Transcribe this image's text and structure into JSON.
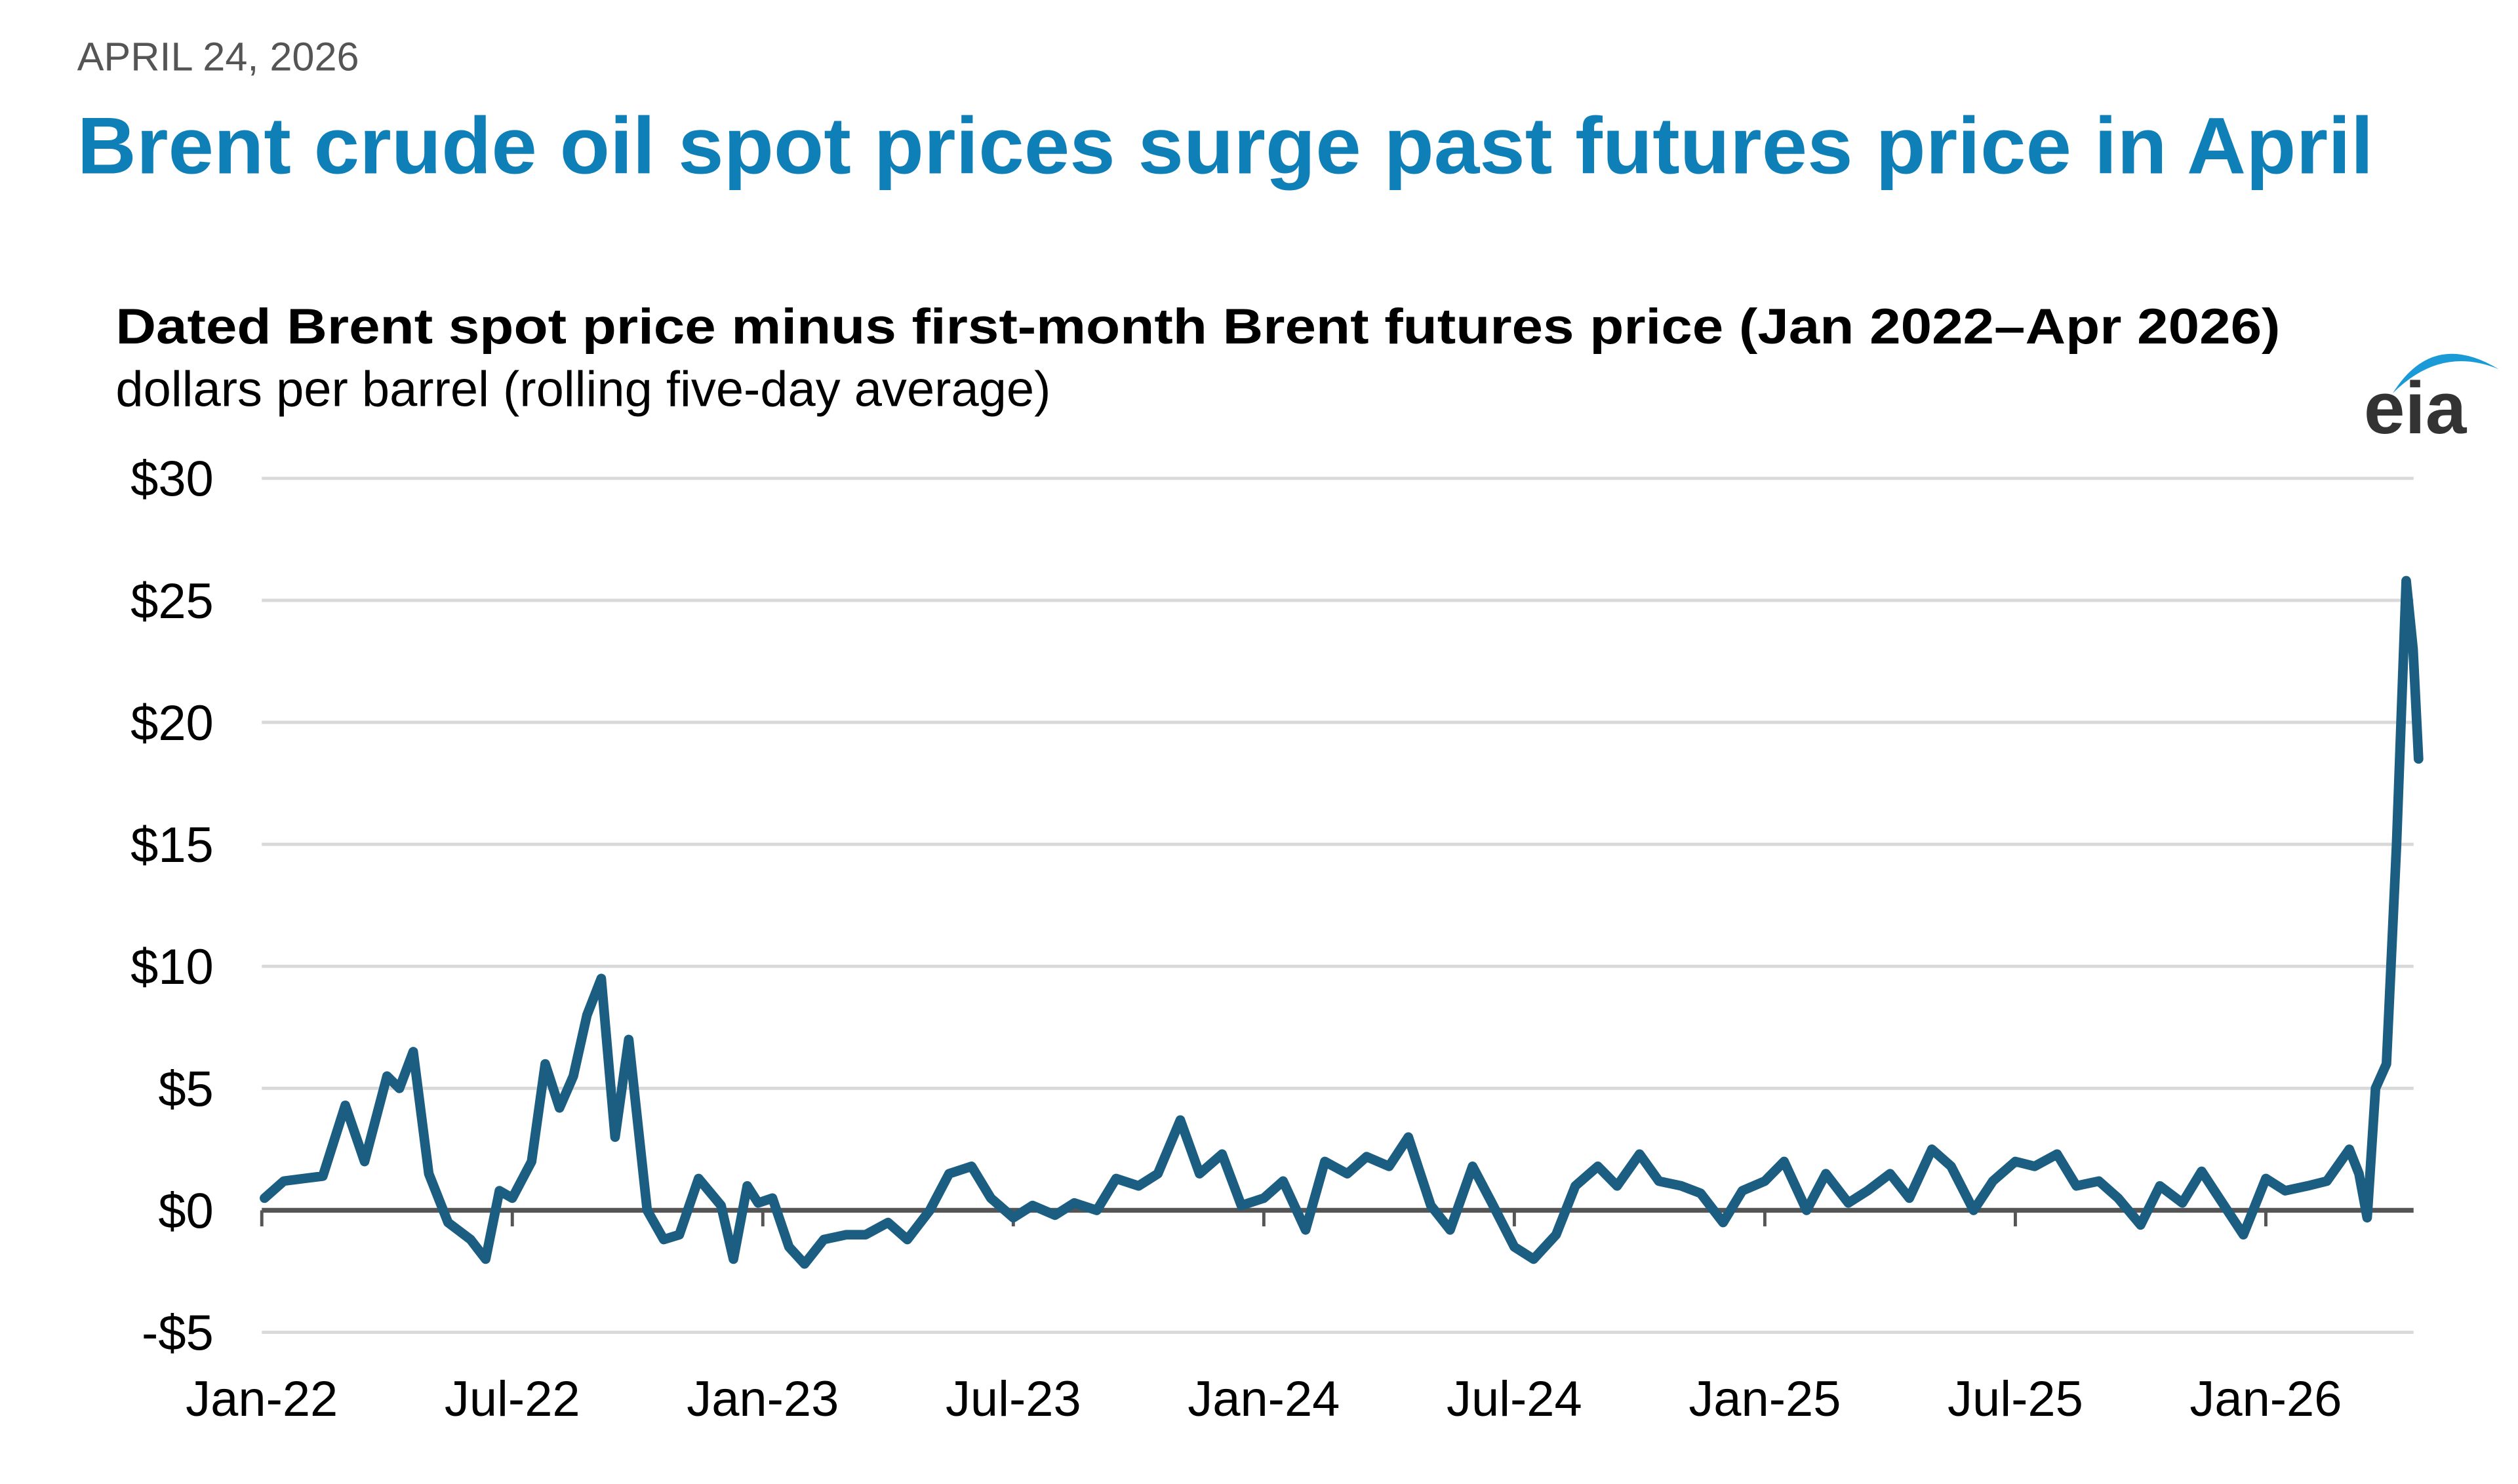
{
  "header": {
    "date": "APRIL 24, 2026",
    "title": "Brent crude oil spot prices surge past futures price in April"
  },
  "logo": {
    "text": "eia",
    "arc_color": "#1a9ad6",
    "text_color": "#333333"
  },
  "colors": {
    "title": "#0f7fb8",
    "line": "#1b5e82",
    "grid": "#d9d9d9",
    "zero_axis": "#555555"
  },
  "chart_data": {
    "type": "line",
    "title": "Dated Brent spot price minus first-month Brent futures price (Jan 2022–Apr 2026)",
    "subtitle": "dollars per barrel (rolling five-day average)",
    "xlabel": "",
    "ylabel": "",
    "ylim": [
      -5,
      30
    ],
    "y_ticks": [
      30,
      25,
      20,
      15,
      10,
      5,
      0,
      -5
    ],
    "y_tick_labels": [
      "$30",
      "$25",
      "$20",
      "$15",
      "$10",
      "$5",
      "$0",
      "-$5"
    ],
    "x_ticks": [
      "2022-01-01",
      "2022-07-01",
      "2023-01-01",
      "2023-07-01",
      "2024-01-01",
      "2024-07-01",
      "2025-01-01",
      "2025-07-01",
      "2026-01-01"
    ],
    "x_tick_labels": [
      "Jan-22",
      "Jul-22",
      "Jan-23",
      "Jul-23",
      "Jan-24",
      "Jul-24",
      "Jan-25",
      "Jul-25",
      "Jan-26"
    ],
    "grid": true,
    "legend": "none",
    "series": [
      {
        "points": [
          [
            "2022-01-03",
            0.5
          ],
          [
            "2022-01-17",
            1.2
          ],
          [
            "2022-02-01",
            1.3
          ],
          [
            "2022-02-15",
            1.4
          ],
          [
            "2022-03-01",
            4.3
          ],
          [
            "2022-03-15",
            2.0
          ],
          [
            "2022-04-01",
            5.5
          ],
          [
            "2022-04-10",
            5.0
          ],
          [
            "2022-04-20",
            6.5
          ],
          [
            "2022-05-01",
            1.5
          ],
          [
            "2022-05-15",
            -0.5
          ],
          [
            "2022-06-01",
            -1.2
          ],
          [
            "2022-06-12",
            -2.0
          ],
          [
            "2022-06-22",
            0.8
          ],
          [
            "2022-07-01",
            0.5
          ],
          [
            "2022-07-15",
            2.0
          ],
          [
            "2022-07-25",
            6.0
          ],
          [
            "2022-08-05",
            4.2
          ],
          [
            "2022-08-15",
            5.5
          ],
          [
            "2022-08-25",
            8.0
          ],
          [
            "2022-09-05",
            9.5
          ],
          [
            "2022-09-15",
            3.0
          ],
          [
            "2022-09-25",
            7.0
          ],
          [
            "2022-10-08",
            0.0
          ],
          [
            "2022-10-20",
            -1.2
          ],
          [
            "2022-11-01",
            -1.0
          ],
          [
            "2022-11-15",
            1.3
          ],
          [
            "2022-12-01",
            0.2
          ],
          [
            "2022-12-10",
            -2.0
          ],
          [
            "2022-12-20",
            1.0
          ],
          [
            "2022-12-28",
            0.3
          ],
          [
            "2023-01-08",
            0.5
          ],
          [
            "2023-01-20",
            -1.5
          ],
          [
            "2023-02-01",
            -2.2
          ],
          [
            "2023-02-15",
            -1.2
          ],
          [
            "2023-03-01",
            -1.0
          ],
          [
            "2023-03-15",
            -1.0
          ],
          [
            "2023-04-01",
            -0.5
          ],
          [
            "2023-04-15",
            -1.2
          ],
          [
            "2023-05-01",
            0.0
          ],
          [
            "2023-05-15",
            1.5
          ],
          [
            "2023-06-01",
            1.8
          ],
          [
            "2023-06-15",
            0.5
          ],
          [
            "2023-07-01",
            -0.3
          ],
          [
            "2023-07-15",
            0.2
          ],
          [
            "2023-08-01",
            -0.2
          ],
          [
            "2023-08-15",
            0.3
          ],
          [
            "2023-09-01",
            0.0
          ],
          [
            "2023-09-15",
            1.3
          ],
          [
            "2023-10-01",
            1.0
          ],
          [
            "2023-10-15",
            1.5
          ],
          [
            "2023-11-01",
            3.7
          ],
          [
            "2023-11-15",
            1.5
          ],
          [
            "2023-12-01",
            2.3
          ],
          [
            "2023-12-15",
            0.2
          ],
          [
            "2024-01-01",
            0.5
          ],
          [
            "2024-01-15",
            1.2
          ],
          [
            "2024-02-01",
            -0.8
          ],
          [
            "2024-02-15",
            2.0
          ],
          [
            "2024-03-01",
            1.5
          ],
          [
            "2024-03-15",
            2.2
          ],
          [
            "2024-04-01",
            1.8
          ],
          [
            "2024-04-15",
            3.0
          ],
          [
            "2024-05-01",
            0.2
          ],
          [
            "2024-05-15",
            -0.8
          ],
          [
            "2024-06-01",
            1.8
          ],
          [
            "2024-06-15",
            0.3
          ],
          [
            "2024-07-01",
            -1.5
          ],
          [
            "2024-07-15",
            -2.0
          ],
          [
            "2024-08-01",
            -1.0
          ],
          [
            "2024-08-15",
            1.0
          ],
          [
            "2024-09-01",
            1.8
          ],
          [
            "2024-09-15",
            1.0
          ],
          [
            "2024-10-01",
            2.3
          ],
          [
            "2024-10-15",
            1.2
          ],
          [
            "2024-11-01",
            1.0
          ],
          [
            "2024-11-15",
            0.7
          ],
          [
            "2024-12-01",
            -0.5
          ],
          [
            "2024-12-15",
            0.8
          ],
          [
            "2025-01-01",
            1.2
          ],
          [
            "2025-01-15",
            2.0
          ],
          [
            "2025-02-01",
            0.0
          ],
          [
            "2025-02-15",
            1.5
          ],
          [
            "2025-03-01",
            0.3
          ],
          [
            "2025-03-15",
            0.8
          ],
          [
            "2025-04-01",
            1.5
          ],
          [
            "2025-04-15",
            0.5
          ],
          [
            "2025-05-01",
            2.5
          ],
          [
            "2025-05-15",
            1.8
          ],
          [
            "2025-06-01",
            0.0
          ],
          [
            "2025-06-15",
            1.2
          ],
          [
            "2025-07-01",
            2.0
          ],
          [
            "2025-07-15",
            1.8
          ],
          [
            "2025-08-01",
            2.3
          ],
          [
            "2025-08-15",
            1.0
          ],
          [
            "2025-09-01",
            1.2
          ],
          [
            "2025-09-15",
            0.5
          ],
          [
            "2025-10-01",
            -0.6
          ],
          [
            "2025-10-15",
            1.0
          ],
          [
            "2025-11-01",
            0.3
          ],
          [
            "2025-11-15",
            1.6
          ],
          [
            "2025-12-01",
            0.2
          ],
          [
            "2025-12-15",
            -1.0
          ],
          [
            "2026-01-01",
            1.3
          ],
          [
            "2026-01-15",
            0.8
          ],
          [
            "2026-02-01",
            1.0
          ],
          [
            "2026-02-15",
            1.2
          ],
          [
            "2026-03-01",
            2.5
          ],
          [
            "2026-03-08",
            1.5
          ],
          [
            "2026-03-14",
            -0.3
          ],
          [
            "2026-03-20",
            5.0
          ],
          [
            "2026-03-28",
            6.0
          ],
          [
            "2026-04-05",
            15.0
          ],
          [
            "2026-04-12",
            25.8
          ],
          [
            "2026-04-17",
            23.0
          ],
          [
            "2026-04-21",
            18.5
          ]
        ]
      }
    ]
  }
}
